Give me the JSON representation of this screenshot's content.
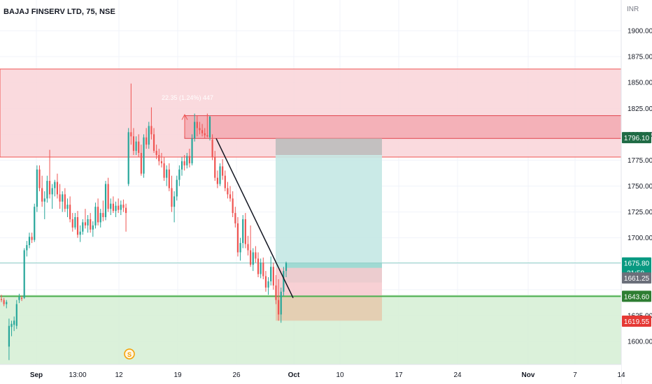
{
  "chart_title": "BAJAJ FINSERV LTD, 75, NSE",
  "currency": "INR",
  "colors": {
    "up": "#26a69a",
    "down": "#ef5350",
    "supply_zone": "#f8c6cc",
    "demand_zone": "#d7efd6",
    "stop_zone": "#bdbdbd",
    "target_zone": "#c4e8e4",
    "entry_green": "#4caf50",
    "last_price_bg": "#089981",
    "stop_label_bg": "#1e7d37",
    "marker_orange": "#f59f00"
  },
  "chart_data": {
    "type": "candlestick",
    "price_axis": {
      "ticks": [
        "1900.00",
        "1875.00",
        "1850.00",
        "1825.00",
        "1775.00",
        "1750.00",
        "1725.00",
        "1700.00",
        "1600.00"
      ],
      "range": [
        1580,
        1910
      ]
    },
    "time_axis": {
      "ticks": [
        "Sep",
        "13:00",
        "12",
        "19",
        "26",
        "Oct",
        "10",
        "17",
        "24",
        "Nov",
        "7",
        "14"
      ]
    },
    "price_labels": [
      {
        "name": "marker-1796",
        "value": 1796.1,
        "text": "1796.10"
      },
      {
        "name": "last-price",
        "value": 1675.8,
        "text": "1675.80",
        "sub": "31:58"
      },
      {
        "name": "marker-1661",
        "value": 1661.25,
        "text": "1661.25"
      },
      {
        "name": "marker-1643",
        "value": 1643.6,
        "text": "1643.60"
      },
      {
        "name": "low-price",
        "value": 1619.55,
        "text": "1619.55"
      }
    ],
    "measure_label": "22.35 (1.24%) 447",
    "zones": [
      {
        "name": "supply-zone-outer",
        "from": 1778,
        "to": 1863
      },
      {
        "name": "supply-zone-inner",
        "from": 1796,
        "to": 1818
      },
      {
        "name": "demand-zone",
        "from": 1578,
        "to": 1645
      }
    ],
    "position": {
      "type": "long",
      "entry": 1671,
      "stop": 1620,
      "target": 1780,
      "stop_cap": 1796,
      "filled_to": 1675.8
    },
    "trendline": {
      "from": 1796,
      "to": 1642
    },
    "horizontal_lines": [
      {
        "name": "entry-line",
        "value": 1643.6
      },
      {
        "name": "last-price-line",
        "value": 1675.8
      }
    ],
    "candles": [
      {
        "o": 1641,
        "h": 1645,
        "l": 1638,
        "c": 1640
      },
      {
        "o": 1640,
        "h": 1642,
        "l": 1634,
        "c": 1636
      },
      {
        "o": 1636,
        "h": 1640,
        "l": 1632,
        "c": 1638
      },
      {
        "o": 1595,
        "h": 1622,
        "l": 1582,
        "c": 1615
      },
      {
        "o": 1614,
        "h": 1620,
        "l": 1605,
        "c": 1617
      },
      {
        "o": 1616,
        "h": 1624,
        "l": 1610,
        "c": 1620
      },
      {
        "o": 1615,
        "h": 1640,
        "l": 1612,
        "c": 1636
      },
      {
        "o": 1640,
        "h": 1646,
        "l": 1637,
        "c": 1643
      },
      {
        "o": 1642,
        "h": 1644,
        "l": 1639,
        "c": 1641
      },
      {
        "o": 1642,
        "h": 1690,
        "l": 1641,
        "c": 1688
      },
      {
        "o": 1688,
        "h": 1697,
        "l": 1682,
        "c": 1693
      },
      {
        "o": 1693,
        "h": 1705,
        "l": 1690,
        "c": 1701
      },
      {
        "o": 1701,
        "h": 1705,
        "l": 1695,
        "c": 1698
      },
      {
        "o": 1698,
        "h": 1733,
        "l": 1696,
        "c": 1730
      },
      {
        "o": 1730,
        "h": 1770,
        "l": 1725,
        "c": 1766
      },
      {
        "o": 1766,
        "h": 1770,
        "l": 1745,
        "c": 1748
      },
      {
        "o": 1748,
        "h": 1760,
        "l": 1730,
        "c": 1735
      },
      {
        "o": 1735,
        "h": 1745,
        "l": 1718,
        "c": 1738
      },
      {
        "o": 1738,
        "h": 1760,
        "l": 1734,
        "c": 1755
      },
      {
        "o": 1755,
        "h": 1785,
        "l": 1738,
        "c": 1742
      },
      {
        "o": 1742,
        "h": 1752,
        "l": 1728,
        "c": 1748
      },
      {
        "o": 1748,
        "h": 1756,
        "l": 1740,
        "c": 1754
      },
      {
        "o": 1754,
        "h": 1762,
        "l": 1738,
        "c": 1742
      },
      {
        "o": 1742,
        "h": 1752,
        "l": 1728,
        "c": 1735
      },
      {
        "o": 1735,
        "h": 1745,
        "l": 1725,
        "c": 1742
      },
      {
        "o": 1742,
        "h": 1748,
        "l": 1725,
        "c": 1728
      },
      {
        "o": 1728,
        "h": 1738,
        "l": 1720,
        "c": 1732
      },
      {
        "o": 1732,
        "h": 1740,
        "l": 1715,
        "c": 1718
      },
      {
        "o": 1718,
        "h": 1724,
        "l": 1706,
        "c": 1710
      },
      {
        "o": 1710,
        "h": 1724,
        "l": 1708,
        "c": 1720
      },
      {
        "o": 1720,
        "h": 1726,
        "l": 1700,
        "c": 1703
      },
      {
        "o": 1703,
        "h": 1712,
        "l": 1696,
        "c": 1706
      },
      {
        "o": 1706,
        "h": 1718,
        "l": 1703,
        "c": 1715
      },
      {
        "o": 1715,
        "h": 1728,
        "l": 1709,
        "c": 1712
      },
      {
        "o": 1712,
        "h": 1722,
        "l": 1705,
        "c": 1718
      },
      {
        "o": 1718,
        "h": 1724,
        "l": 1705,
        "c": 1708
      },
      {
        "o": 1708,
        "h": 1716,
        "l": 1701,
        "c": 1712
      },
      {
        "o": 1712,
        "h": 1734,
        "l": 1709,
        "c": 1730
      },
      {
        "o": 1730,
        "h": 1738,
        "l": 1712,
        "c": 1715
      },
      {
        "o": 1715,
        "h": 1728,
        "l": 1710,
        "c": 1724
      },
      {
        "o": 1724,
        "h": 1736,
        "l": 1716,
        "c": 1720
      },
      {
        "o": 1720,
        "h": 1755,
        "l": 1717,
        "c": 1752
      },
      {
        "o": 1752,
        "h": 1758,
        "l": 1725,
        "c": 1728
      },
      {
        "o": 1728,
        "h": 1738,
        "l": 1722,
        "c": 1733
      },
      {
        "o": 1733,
        "h": 1740,
        "l": 1724,
        "c": 1726
      },
      {
        "o": 1726,
        "h": 1735,
        "l": 1720,
        "c": 1731
      },
      {
        "o": 1731,
        "h": 1738,
        "l": 1724,
        "c": 1727
      },
      {
        "o": 1727,
        "h": 1736,
        "l": 1722,
        "c": 1732
      },
      {
        "o": 1732,
        "h": 1737,
        "l": 1725,
        "c": 1729
      },
      {
        "o": 1729,
        "h": 1733,
        "l": 1706,
        "c": 1724
      },
      {
        "o": 1752,
        "h": 1806,
        "l": 1750,
        "c": 1802
      },
      {
        "o": 1802,
        "h": 1849,
        "l": 1790,
        "c": 1798
      },
      {
        "o": 1798,
        "h": 1806,
        "l": 1780,
        "c": 1784
      },
      {
        "o": 1784,
        "h": 1798,
        "l": 1780,
        "c": 1793
      },
      {
        "o": 1793,
        "h": 1800,
        "l": 1778,
        "c": 1782
      },
      {
        "o": 1782,
        "h": 1790,
        "l": 1760,
        "c": 1762
      },
      {
        "o": 1762,
        "h": 1800,
        "l": 1758,
        "c": 1797
      },
      {
        "o": 1797,
        "h": 1806,
        "l": 1786,
        "c": 1790
      },
      {
        "o": 1790,
        "h": 1812,
        "l": 1786,
        "c": 1808
      },
      {
        "o": 1808,
        "h": 1826,
        "l": 1795,
        "c": 1800
      },
      {
        "o": 1800,
        "h": 1806,
        "l": 1782,
        "c": 1784
      },
      {
        "o": 1784,
        "h": 1790,
        "l": 1776,
        "c": 1780
      },
      {
        "o": 1780,
        "h": 1786,
        "l": 1770,
        "c": 1774
      },
      {
        "o": 1774,
        "h": 1782,
        "l": 1768,
        "c": 1772
      },
      {
        "o": 1772,
        "h": 1778,
        "l": 1755,
        "c": 1758
      },
      {
        "o": 1758,
        "h": 1770,
        "l": 1750,
        "c": 1766
      },
      {
        "o": 1766,
        "h": 1772,
        "l": 1745,
        "c": 1748
      },
      {
        "o": 1748,
        "h": 1760,
        "l": 1725,
        "c": 1730
      },
      {
        "o": 1730,
        "h": 1745,
        "l": 1715,
        "c": 1740
      },
      {
        "o": 1740,
        "h": 1760,
        "l": 1736,
        "c": 1756
      },
      {
        "o": 1756,
        "h": 1770,
        "l": 1750,
        "c": 1766
      },
      {
        "o": 1766,
        "h": 1778,
        "l": 1760,
        "c": 1774
      },
      {
        "o": 1774,
        "h": 1780,
        "l": 1765,
        "c": 1770
      },
      {
        "o": 1770,
        "h": 1782,
        "l": 1767,
        "c": 1779
      },
      {
        "o": 1779,
        "h": 1786,
        "l": 1768,
        "c": 1772
      },
      {
        "o": 1772,
        "h": 1800,
        "l": 1770,
        "c": 1796
      },
      {
        "o": 1796,
        "h": 1820,
        "l": 1793,
        "c": 1812
      },
      {
        "o": 1812,
        "h": 1818,
        "l": 1798,
        "c": 1806
      },
      {
        "o": 1806,
        "h": 1812,
        "l": 1800,
        "c": 1804
      },
      {
        "o": 1804,
        "h": 1810,
        "l": 1798,
        "c": 1801
      },
      {
        "o": 1801,
        "h": 1806,
        "l": 1796,
        "c": 1799
      },
      {
        "o": 1799,
        "h": 1820,
        "l": 1797,
        "c": 1798
      },
      {
        "o": 1797,
        "h": 1818,
        "l": 1794,
        "c": 1817
      },
      {
        "o": 1795,
        "h": 1800,
        "l": 1775,
        "c": 1778
      },
      {
        "o": 1778,
        "h": 1784,
        "l": 1755,
        "c": 1758
      },
      {
        "o": 1758,
        "h": 1765,
        "l": 1748,
        "c": 1752
      },
      {
        "o": 1752,
        "h": 1772,
        "l": 1750,
        "c": 1769
      },
      {
        "o": 1769,
        "h": 1776,
        "l": 1756,
        "c": 1760
      },
      {
        "o": 1760,
        "h": 1765,
        "l": 1745,
        "c": 1748
      },
      {
        "o": 1748,
        "h": 1754,
        "l": 1738,
        "c": 1742
      },
      {
        "o": 1742,
        "h": 1750,
        "l": 1735,
        "c": 1738
      },
      {
        "o": 1738,
        "h": 1745,
        "l": 1720,
        "c": 1724
      },
      {
        "o": 1724,
        "h": 1730,
        "l": 1710,
        "c": 1714
      },
      {
        "o": 1714,
        "h": 1720,
        "l": 1682,
        "c": 1686
      },
      {
        "o": 1686,
        "h": 1700,
        "l": 1678,
        "c": 1695
      },
      {
        "o": 1695,
        "h": 1722,
        "l": 1690,
        "c": 1718
      },
      {
        "o": 1718,
        "h": 1724,
        "l": 1690,
        "c": 1694
      },
      {
        "o": 1694,
        "h": 1702,
        "l": 1683,
        "c": 1688
      },
      {
        "o": 1688,
        "h": 1712,
        "l": 1672,
        "c": 1674
      },
      {
        "o": 1674,
        "h": 1690,
        "l": 1668,
        "c": 1686
      },
      {
        "o": 1686,
        "h": 1692,
        "l": 1676,
        "c": 1680
      },
      {
        "o": 1680,
        "h": 1686,
        "l": 1662,
        "c": 1665
      },
      {
        "o": 1665,
        "h": 1680,
        "l": 1661,
        "c": 1676
      },
      {
        "o": 1676,
        "h": 1681,
        "l": 1660,
        "c": 1663
      },
      {
        "o": 1663,
        "h": 1668,
        "l": 1648,
        "c": 1652
      },
      {
        "o": 1652,
        "h": 1662,
        "l": 1645,
        "c": 1658
      },
      {
        "o": 1658,
        "h": 1682,
        "l": 1654,
        "c": 1672
      },
      {
        "o": 1672,
        "h": 1676,
        "l": 1650,
        "c": 1654
      },
      {
        "o": 1654,
        "h": 1664,
        "l": 1636,
        "c": 1640
      },
      {
        "o": 1640,
        "h": 1660,
        "l": 1620,
        "c": 1626
      },
      {
        "o": 1626,
        "h": 1652,
        "l": 1618,
        "c": 1648
      },
      {
        "o": 1648,
        "h": 1672,
        "l": 1644,
        "c": 1668
      },
      {
        "o": 1668,
        "h": 1677,
        "l": 1662,
        "c": 1675.8
      }
    ]
  }
}
